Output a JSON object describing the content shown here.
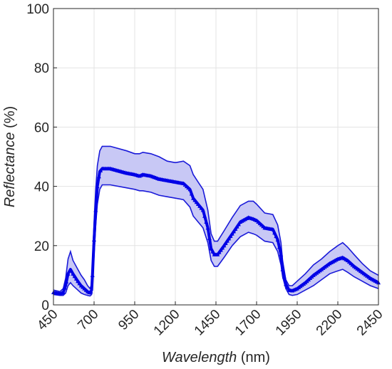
{
  "chart_data": {
    "type": "area",
    "xlabel_italic": "Wavelength",
    "xlabel_unit": "(nm)",
    "ylabel_italic": "Reflectance",
    "ylabel_unit": "(%)",
    "xlim": [
      450,
      2450
    ],
    "ylim": [
      0,
      100
    ],
    "xticks": [
      "450",
      "700",
      "950",
      "1200",
      "1450",
      "1700",
      "1950",
      "2200",
      "2450"
    ],
    "yticks": [
      "0",
      "20",
      "40",
      "60",
      "80",
      "100"
    ],
    "grid": true,
    "line_color": "#0000e6",
    "band_fill": "#c8c8f5",
    "band_edge_color": "#1a1ad9",
    "series": [
      {
        "role": "mean",
        "x": [
          450,
          490,
          510,
          525,
          540,
          555,
          570,
          600,
          620,
          640,
          660,
          675,
          685,
          690,
          700,
          710,
          720,
          735,
          750,
          800,
          900,
          950,
          980,
          1000,
          1050,
          1100,
          1150,
          1200,
          1250,
          1290,
          1310,
          1340,
          1370,
          1400,
          1420,
          1440,
          1460,
          1500,
          1550,
          1600,
          1650,
          1680,
          1700,
          1750,
          1800,
          1830,
          1850,
          1860,
          1880,
          1900,
          1920,
          1950,
          2000,
          2050,
          2100,
          2150,
          2200,
          2230,
          2260,
          2300,
          2350,
          2400,
          2450
        ],
        "y": [
          4.2,
          3.8,
          4.2,
          6.5,
          10.5,
          12,
          10.5,
          8,
          6.5,
          5.5,
          4.5,
          4,
          5,
          10,
          22,
          32,
          40,
          45,
          46,
          46,
          44.5,
          44,
          43.5,
          44,
          43.5,
          42.5,
          42,
          41.5,
          41,
          39,
          36,
          34,
          32,
          26,
          19,
          17,
          17,
          20,
          24,
          28,
          29.5,
          29,
          28.5,
          26,
          25.5,
          22,
          17,
          12,
          7,
          5,
          4.8,
          5.5,
          7.5,
          10,
          12,
          14,
          15.5,
          16,
          15,
          13,
          11,
          9,
          7.5
        ]
      },
      {
        "role": "upper",
        "x": [
          450,
          490,
          510,
          525,
          540,
          555,
          570,
          600,
          620,
          640,
          660,
          675,
          685,
          690,
          700,
          710,
          720,
          735,
          750,
          800,
          900,
          950,
          980,
          1000,
          1050,
          1100,
          1150,
          1200,
          1250,
          1290,
          1310,
          1340,
          1370,
          1400,
          1420,
          1440,
          1460,
          1500,
          1550,
          1600,
          1650,
          1680,
          1700,
          1750,
          1800,
          1830,
          1850,
          1860,
          1880,
          1900,
          1920,
          1950,
          2000,
          2050,
          2100,
          2150,
          2200,
          2230,
          2260,
          2300,
          2350,
          2400,
          2450
        ],
        "y": [
          5,
          4.5,
          5.5,
          9,
          15.5,
          18,
          15,
          12,
          10,
          8.5,
          6.5,
          5.5,
          7,
          14,
          28,
          39,
          47,
          52,
          53.5,
          53.5,
          52,
          51,
          51,
          51.5,
          51,
          50,
          48.5,
          48,
          48.5,
          47,
          44,
          41.5,
          39,
          32,
          24,
          21.5,
          21.5,
          25,
          29.5,
          33.5,
          35,
          35,
          34,
          31,
          30.5,
          27,
          21,
          15,
          8.5,
          6.5,
          6.5,
          8,
          10.5,
          13.5,
          15.5,
          18,
          20,
          21,
          19.5,
          17,
          14,
          11.5,
          10
        ]
      },
      {
        "role": "lower",
        "x": [
          450,
          490,
          510,
          525,
          540,
          555,
          570,
          600,
          620,
          640,
          660,
          675,
          685,
          690,
          700,
          710,
          720,
          735,
          750,
          800,
          900,
          950,
          980,
          1000,
          1050,
          1100,
          1150,
          1200,
          1250,
          1290,
          1310,
          1340,
          1370,
          1400,
          1420,
          1440,
          1460,
          1500,
          1550,
          1600,
          1650,
          1680,
          1700,
          1750,
          1800,
          1830,
          1850,
          1860,
          1880,
          1900,
          1920,
          1950,
          2000,
          2050,
          2100,
          2150,
          2200,
          2230,
          2260,
          2300,
          2350,
          2400,
          2450
        ],
        "y": [
          3.5,
          3.2,
          3.2,
          4,
          6.5,
          7.5,
          6.5,
          5,
          4,
          3.5,
          3.2,
          3,
          3.5,
          7,
          17,
          27,
          34,
          39,
          40.5,
          40.5,
          39.5,
          39,
          38.5,
          38.5,
          38,
          37,
          36.5,
          36,
          35.5,
          33,
          30,
          28,
          26,
          21,
          15,
          13,
          13,
          16,
          20,
          23,
          24.5,
          24,
          23.5,
          21.5,
          21,
          18,
          13.5,
          9.5,
          5.5,
          3.5,
          3.2,
          3.5,
          5,
          6.5,
          8.5,
          10.5,
          11.5,
          12,
          11,
          9.5,
          8,
          6.5,
          5.5
        ]
      }
    ]
  }
}
